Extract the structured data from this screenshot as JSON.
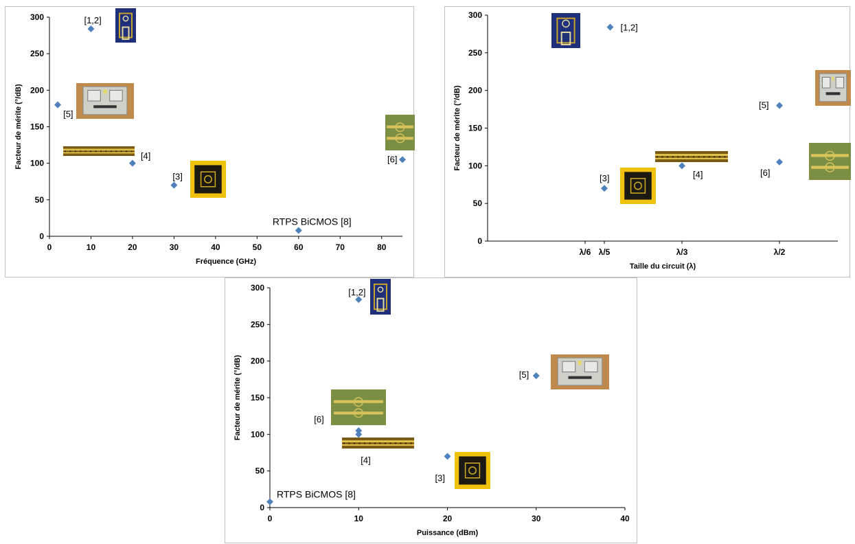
{
  "colors": {
    "marker": "#4f81bd",
    "axis": "#000000",
    "frame": "#bfbfbf",
    "photo_gold": "#c9a42b",
    "photo_pcb_grey": "#cfd0c8",
    "photo_pcb_wood": "#c08a4d",
    "photo_blue": "#1f2f7a",
    "photo_green": "#7a8f43"
  },
  "chart_data": [
    {
      "id": "freq",
      "type": "scatter",
      "xlabel": "Fréquence (GHz)",
      "ylabel": "Facteur de mérite (°/dB)",
      "xlim": [
        0,
        85
      ],
      "ylim": [
        0,
        300
      ],
      "xticks": [
        "0",
        "10",
        "20",
        "30",
        "40",
        "50",
        "60",
        "70",
        "80"
      ],
      "yticks": [
        "0",
        "50",
        "100",
        "150",
        "200",
        "250",
        "300"
      ],
      "grid": false,
      "points": [
        {
          "label": "[1,2]",
          "x": 10,
          "y": 284,
          "photo": "blue-coupler-photo"
        },
        {
          "label": "[5]",
          "x": 2,
          "y": 180,
          "photo": "grey-pcb-photo"
        },
        {
          "label": "[4]",
          "x": 20,
          "y": 100,
          "photo": "long-gold-line-photo"
        },
        {
          "label": "[3]",
          "x": 30,
          "y": 70,
          "photo": "gold-chip-photo"
        },
        {
          "label": "RTPS BiCMOS [8]",
          "x": 60,
          "y": 8,
          "photo": ""
        },
        {
          "label": "[6]",
          "x": 85,
          "y": 105,
          "photo": "green-chip-photo"
        }
      ]
    },
    {
      "id": "size",
      "type": "scatter",
      "xlabel": "Taille du circuit (λ)",
      "ylabel": "Facteur de mérite (°/dB)",
      "xlim": [
        0,
        0.6
      ],
      "ylim": [
        0,
        300
      ],
      "xticks": [
        "λ/6",
        "λ/5",
        "λ/3",
        "λ/2"
      ],
      "yticks": [
        "0",
        "50",
        "100",
        "150",
        "200",
        "250",
        "300"
      ],
      "grid": false,
      "points": [
        {
          "label": "[1,2]",
          "x": 0.21,
          "y": 284,
          "photo": "blue-coupler-photo"
        },
        {
          "label": "[5]",
          "x": 0.5,
          "y": 180,
          "photo": "grey-pcb-photo"
        },
        {
          "label": "[4]",
          "x": 0.333,
          "y": 100,
          "photo": "long-gold-line-photo"
        },
        {
          "label": "[3]",
          "x": 0.2,
          "y": 70,
          "photo": "gold-chip-photo"
        },
        {
          "label": "[6]",
          "x": 0.5,
          "y": 105,
          "photo": "green-chip-photo"
        }
      ]
    },
    {
      "id": "power",
      "type": "scatter",
      "xlabel": "Puissance (dBm)",
      "ylabel": "Facteur de mérite (°/dB)",
      "xlim": [
        0,
        40
      ],
      "ylim": [
        0,
        300
      ],
      "xticks": [
        "0",
        "10",
        "20",
        "30",
        "40"
      ],
      "yticks": [
        "0",
        "50",
        "100",
        "150",
        "200",
        "250",
        "300"
      ],
      "grid": false,
      "points": [
        {
          "label": "[1,2]",
          "x": 10,
          "y": 284,
          "photo": "blue-coupler-photo"
        },
        {
          "label": "[5]",
          "x": 30,
          "y": 180,
          "photo": "grey-pcb-photo"
        },
        {
          "label": "[6]",
          "x": 10,
          "y": 105,
          "photo": "green-chip-photo"
        },
        {
          "label": "[4]",
          "x": 10,
          "y": 100,
          "photo": "long-gold-line-photo"
        },
        {
          "label": "[3]",
          "x": 20,
          "y": 70,
          "photo": "gold-chip-photo"
        },
        {
          "label": "RTPS BiCMOS [8]",
          "x": 0,
          "y": 8,
          "photo": ""
        }
      ]
    }
  ]
}
